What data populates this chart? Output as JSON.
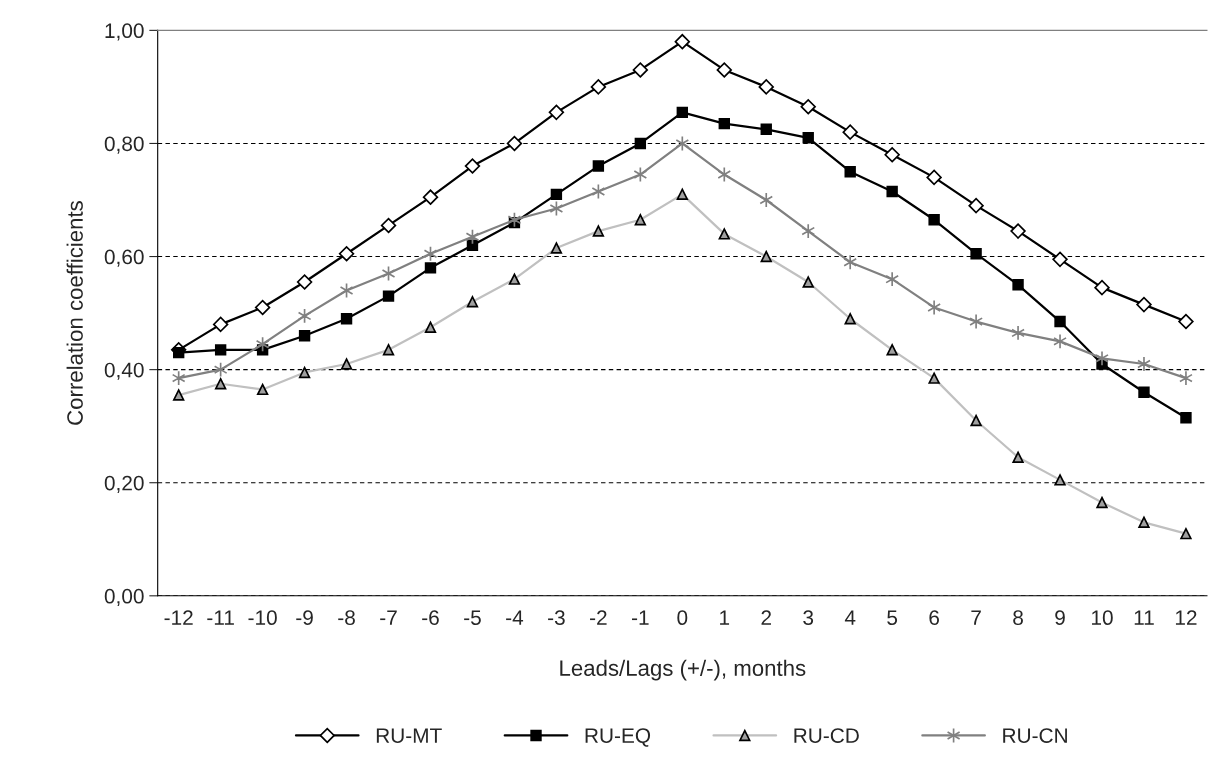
{
  "chart_data": {
    "type": "line",
    "xlabel": "Leads/Lags (+/-), months",
    "ylabel": "Correlation coefficients",
    "categories": [
      "-12",
      "-11",
      "-10",
      "-9",
      "-8",
      "-7",
      "-6",
      "-5",
      "-4",
      "-3",
      "-2",
      "-1",
      "0",
      "1",
      "2",
      "3",
      "4",
      "5",
      "6",
      "7",
      "8",
      "9",
      "10",
      "11",
      "12"
    ],
    "ylim": [
      0,
      1
    ],
    "yticks": [
      {
        "value": 0,
        "label": "0,00"
      },
      {
        "value": 0.2,
        "label": "0,20"
      },
      {
        "value": 0.4,
        "label": "0,40"
      },
      {
        "value": 0.6,
        "label": "0,60"
      },
      {
        "value": 0.8,
        "label": "0,80"
      },
      {
        "value": 1,
        "label": "1,00"
      }
    ],
    "grid": "y",
    "legend": "bottom",
    "series": [
      {
        "name": "RU-MT",
        "color": "#000000",
        "marker": "diamond",
        "values": [
          0.435,
          0.48,
          0.51,
          0.555,
          0.605,
          0.655,
          0.705,
          0.76,
          0.8,
          0.855,
          0.9,
          0.93,
          0.98,
          0.93,
          0.9,
          0.865,
          0.82,
          0.78,
          0.74,
          0.69,
          0.645,
          0.595,
          0.545,
          0.515,
          0.485
        ]
      },
      {
        "name": "RU-EQ",
        "color": "#000000",
        "marker": "square",
        "values": [
          0.43,
          0.435,
          0.435,
          0.46,
          0.49,
          0.53,
          0.58,
          0.62,
          0.66,
          0.71,
          0.76,
          0.8,
          0.855,
          0.835,
          0.825,
          0.81,
          0.75,
          0.715,
          0.665,
          0.605,
          0.55,
          0.485,
          0.41,
          0.36,
          0.315
        ]
      },
      {
        "name": "RU-CD",
        "color": "#c0c0c0",
        "marker": "triangle",
        "values": [
          0.355,
          0.375,
          0.365,
          0.395,
          0.41,
          0.435,
          0.475,
          0.52,
          0.56,
          0.615,
          0.645,
          0.665,
          0.71,
          0.64,
          0.6,
          0.555,
          0.49,
          0.435,
          0.385,
          0.31,
          0.245,
          0.205,
          0.165,
          0.13,
          0.11
        ]
      },
      {
        "name": "RU-CN",
        "color": "#808080",
        "marker": "cross",
        "values": [
          0.385,
          0.4,
          0.445,
          0.495,
          0.54,
          0.57,
          0.605,
          0.635,
          0.665,
          0.685,
          0.715,
          0.745,
          0.8,
          0.745,
          0.7,
          0.645,
          0.59,
          0.56,
          0.51,
          0.485,
          0.465,
          0.45,
          0.42,
          0.41,
          0.385
        ]
      }
    ]
  }
}
